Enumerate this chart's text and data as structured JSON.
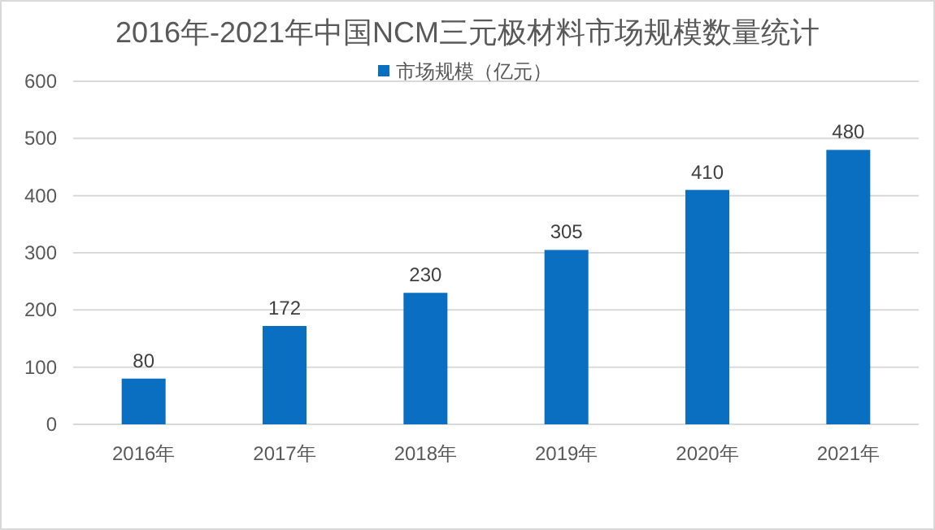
{
  "chart_data": {
    "type": "bar",
    "title": "2016年-2021年中国NCM三元极材料市场规模数量统计",
    "categories": [
      "2016年",
      "2017年",
      "2018年",
      "2019年",
      "2020年",
      "2021年"
    ],
    "series": [
      {
        "name": "市场规模（亿元）",
        "color": "#0b6fc1",
        "values": [
          80,
          172,
          230,
          305,
          410,
          480
        ]
      }
    ],
    "ylim": [
      0,
      600
    ],
    "yticks": [
      0,
      100,
      200,
      300,
      400,
      500,
      600
    ],
    "grid": "y",
    "legend": "top",
    "data_labels": true
  }
}
